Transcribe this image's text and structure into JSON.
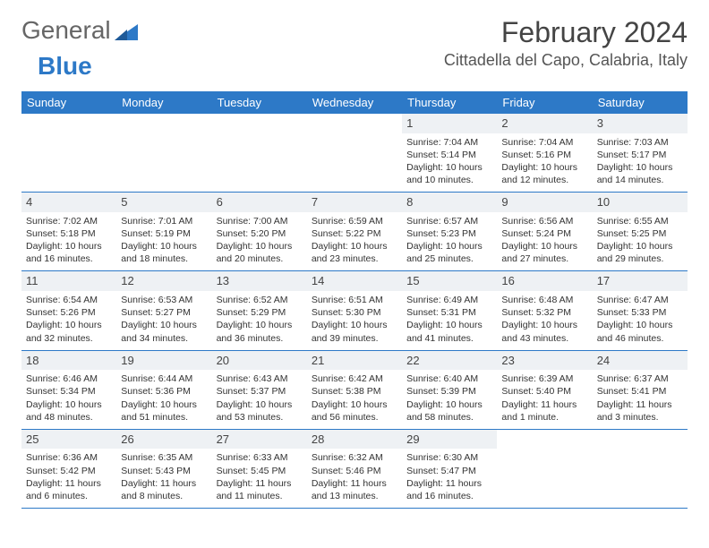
{
  "logo": {
    "part1": "General",
    "part2": "Blue"
  },
  "title": "February 2024",
  "location": "Cittadella del Capo, Calabria, Italy",
  "colors": {
    "header_bg": "#2d79c7",
    "header_text": "#ffffff",
    "daynum_bg": "#eef1f4",
    "text": "#333333",
    "rule": "#2d79c7"
  },
  "fonts": {
    "title_size_pt": 24,
    "location_size_pt": 14,
    "dayheader_size_pt": 10,
    "cell_size_pt": 8
  },
  "day_headers": [
    "Sunday",
    "Monday",
    "Tuesday",
    "Wednesday",
    "Thursday",
    "Friday",
    "Saturday"
  ],
  "labels": {
    "sunrise": "Sunrise:",
    "sunset": "Sunset:",
    "daylight": "Daylight:"
  },
  "weeks": [
    [
      {
        "empty": true
      },
      {
        "empty": true
      },
      {
        "empty": true
      },
      {
        "empty": true
      },
      {
        "day": "1",
        "sunrise": "7:04 AM",
        "sunset": "5:14 PM",
        "daylight": "10 hours and 10 minutes."
      },
      {
        "day": "2",
        "sunrise": "7:04 AM",
        "sunset": "5:16 PM",
        "daylight": "10 hours and 12 minutes."
      },
      {
        "day": "3",
        "sunrise": "7:03 AM",
        "sunset": "5:17 PM",
        "daylight": "10 hours and 14 minutes."
      }
    ],
    [
      {
        "day": "4",
        "sunrise": "7:02 AM",
        "sunset": "5:18 PM",
        "daylight": "10 hours and 16 minutes."
      },
      {
        "day": "5",
        "sunrise": "7:01 AM",
        "sunset": "5:19 PM",
        "daylight": "10 hours and 18 minutes."
      },
      {
        "day": "6",
        "sunrise": "7:00 AM",
        "sunset": "5:20 PM",
        "daylight": "10 hours and 20 minutes."
      },
      {
        "day": "7",
        "sunrise": "6:59 AM",
        "sunset": "5:22 PM",
        "daylight": "10 hours and 23 minutes."
      },
      {
        "day": "8",
        "sunrise": "6:57 AM",
        "sunset": "5:23 PM",
        "daylight": "10 hours and 25 minutes."
      },
      {
        "day": "9",
        "sunrise": "6:56 AM",
        "sunset": "5:24 PM",
        "daylight": "10 hours and 27 minutes."
      },
      {
        "day": "10",
        "sunrise": "6:55 AM",
        "sunset": "5:25 PM",
        "daylight": "10 hours and 29 minutes."
      }
    ],
    [
      {
        "day": "11",
        "sunrise": "6:54 AM",
        "sunset": "5:26 PM",
        "daylight": "10 hours and 32 minutes."
      },
      {
        "day": "12",
        "sunrise": "6:53 AM",
        "sunset": "5:27 PM",
        "daylight": "10 hours and 34 minutes."
      },
      {
        "day": "13",
        "sunrise": "6:52 AM",
        "sunset": "5:29 PM",
        "daylight": "10 hours and 36 minutes."
      },
      {
        "day": "14",
        "sunrise": "6:51 AM",
        "sunset": "5:30 PM",
        "daylight": "10 hours and 39 minutes."
      },
      {
        "day": "15",
        "sunrise": "6:49 AM",
        "sunset": "5:31 PM",
        "daylight": "10 hours and 41 minutes."
      },
      {
        "day": "16",
        "sunrise": "6:48 AM",
        "sunset": "5:32 PM",
        "daylight": "10 hours and 43 minutes."
      },
      {
        "day": "17",
        "sunrise": "6:47 AM",
        "sunset": "5:33 PM",
        "daylight": "10 hours and 46 minutes."
      }
    ],
    [
      {
        "day": "18",
        "sunrise": "6:46 AM",
        "sunset": "5:34 PM",
        "daylight": "10 hours and 48 minutes."
      },
      {
        "day": "19",
        "sunrise": "6:44 AM",
        "sunset": "5:36 PM",
        "daylight": "10 hours and 51 minutes."
      },
      {
        "day": "20",
        "sunrise": "6:43 AM",
        "sunset": "5:37 PM",
        "daylight": "10 hours and 53 minutes."
      },
      {
        "day": "21",
        "sunrise": "6:42 AM",
        "sunset": "5:38 PM",
        "daylight": "10 hours and 56 minutes."
      },
      {
        "day": "22",
        "sunrise": "6:40 AM",
        "sunset": "5:39 PM",
        "daylight": "10 hours and 58 minutes."
      },
      {
        "day": "23",
        "sunrise": "6:39 AM",
        "sunset": "5:40 PM",
        "daylight": "11 hours and 1 minute."
      },
      {
        "day": "24",
        "sunrise": "6:37 AM",
        "sunset": "5:41 PM",
        "daylight": "11 hours and 3 minutes."
      }
    ],
    [
      {
        "day": "25",
        "sunrise": "6:36 AM",
        "sunset": "5:42 PM",
        "daylight": "11 hours and 6 minutes."
      },
      {
        "day": "26",
        "sunrise": "6:35 AM",
        "sunset": "5:43 PM",
        "daylight": "11 hours and 8 minutes."
      },
      {
        "day": "27",
        "sunrise": "6:33 AM",
        "sunset": "5:45 PM",
        "daylight": "11 hours and 11 minutes."
      },
      {
        "day": "28",
        "sunrise": "6:32 AM",
        "sunset": "5:46 PM",
        "daylight": "11 hours and 13 minutes."
      },
      {
        "day": "29",
        "sunrise": "6:30 AM",
        "sunset": "5:47 PM",
        "daylight": "11 hours and 16 minutes."
      },
      {
        "empty": true
      },
      {
        "empty": true
      }
    ]
  ]
}
